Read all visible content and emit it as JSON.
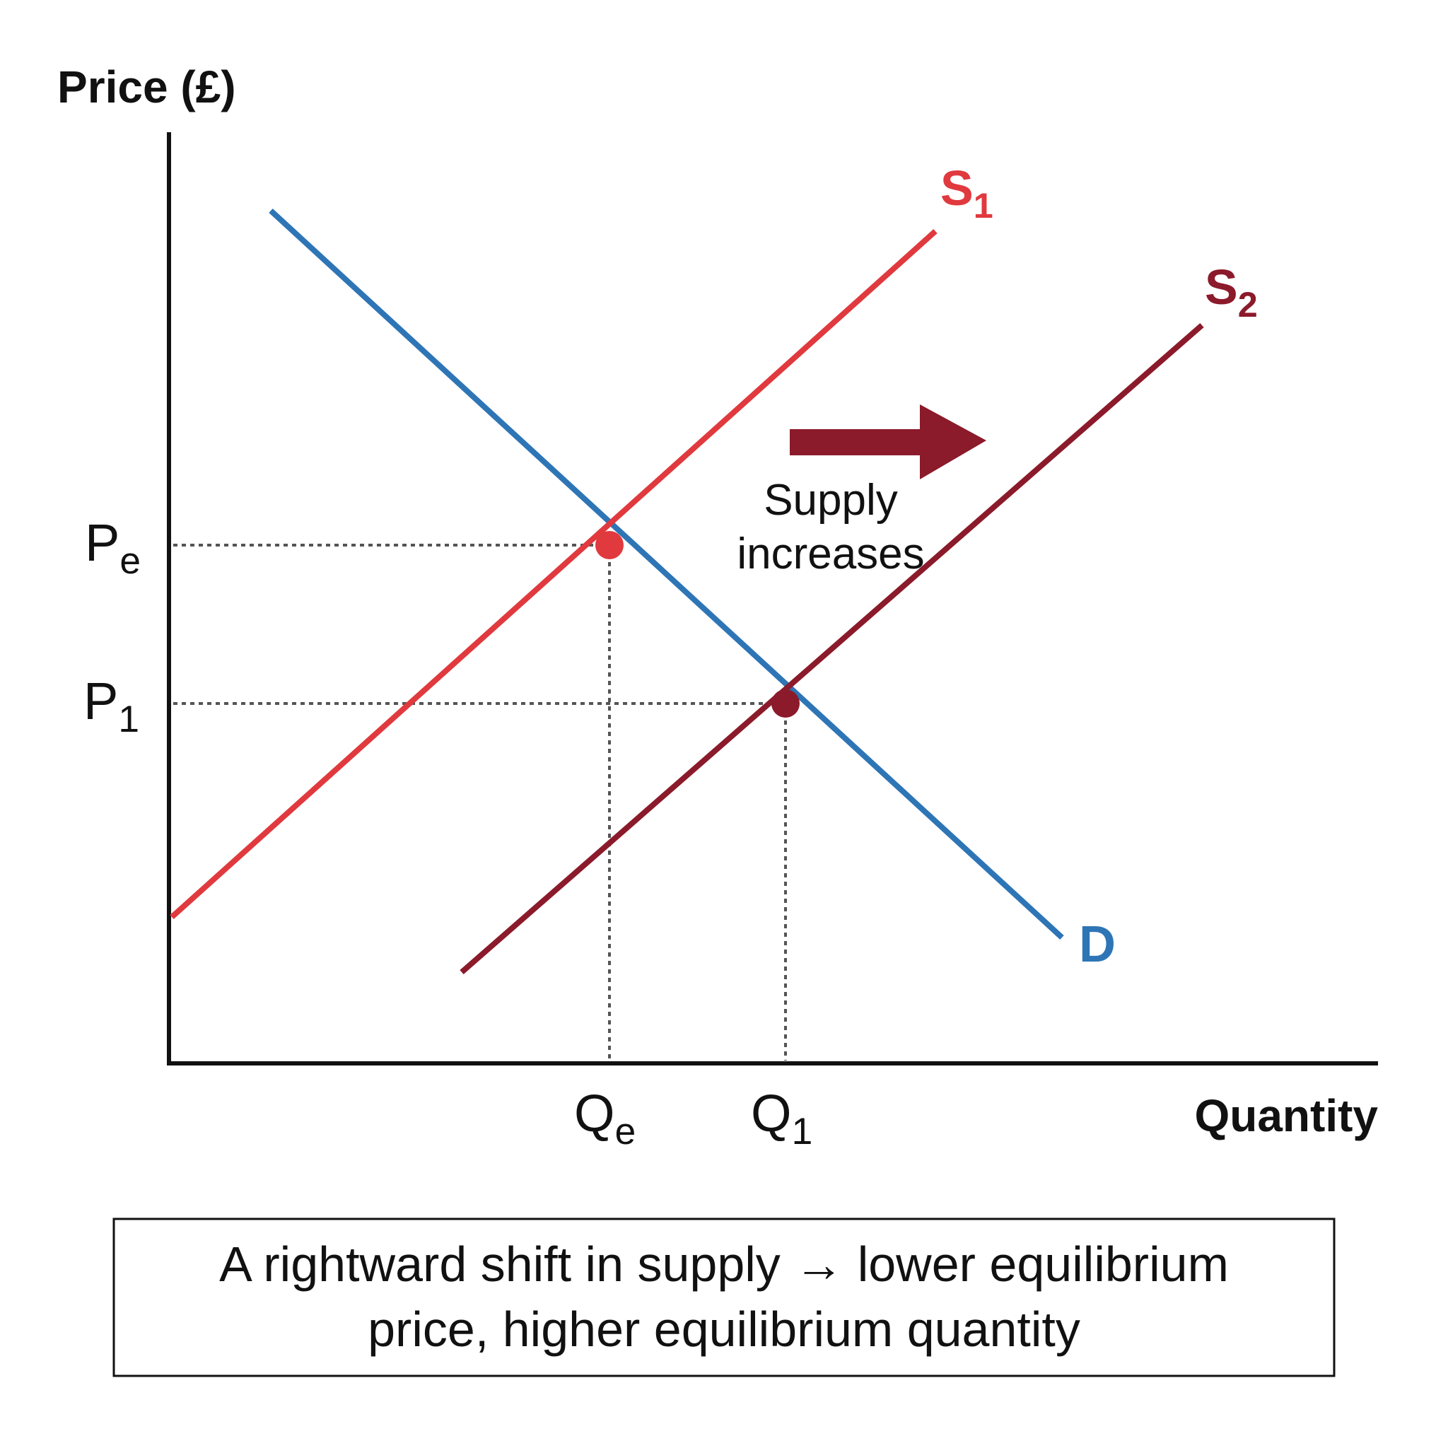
{
  "axes": {
    "y_label": "Price (£)",
    "x_label": "Quantity"
  },
  "price_labels": [
    {
      "main": "P",
      "sub": "e"
    },
    {
      "main": "P",
      "sub": "1"
    }
  ],
  "quantity_labels": [
    {
      "main": "Q",
      "sub": "e"
    },
    {
      "main": "Q",
      "sub": "1"
    }
  ],
  "curves": [
    {
      "main": "S",
      "sub": "1"
    },
    {
      "main": "S",
      "sub": "2"
    },
    {
      "main": "D"
    }
  ],
  "annotation": [
    "Supply",
    "increases"
  ],
  "caption": [
    "A rightward shift in supply → lower equilibrium",
    "price, higher equilibrium quantity"
  ]
}
